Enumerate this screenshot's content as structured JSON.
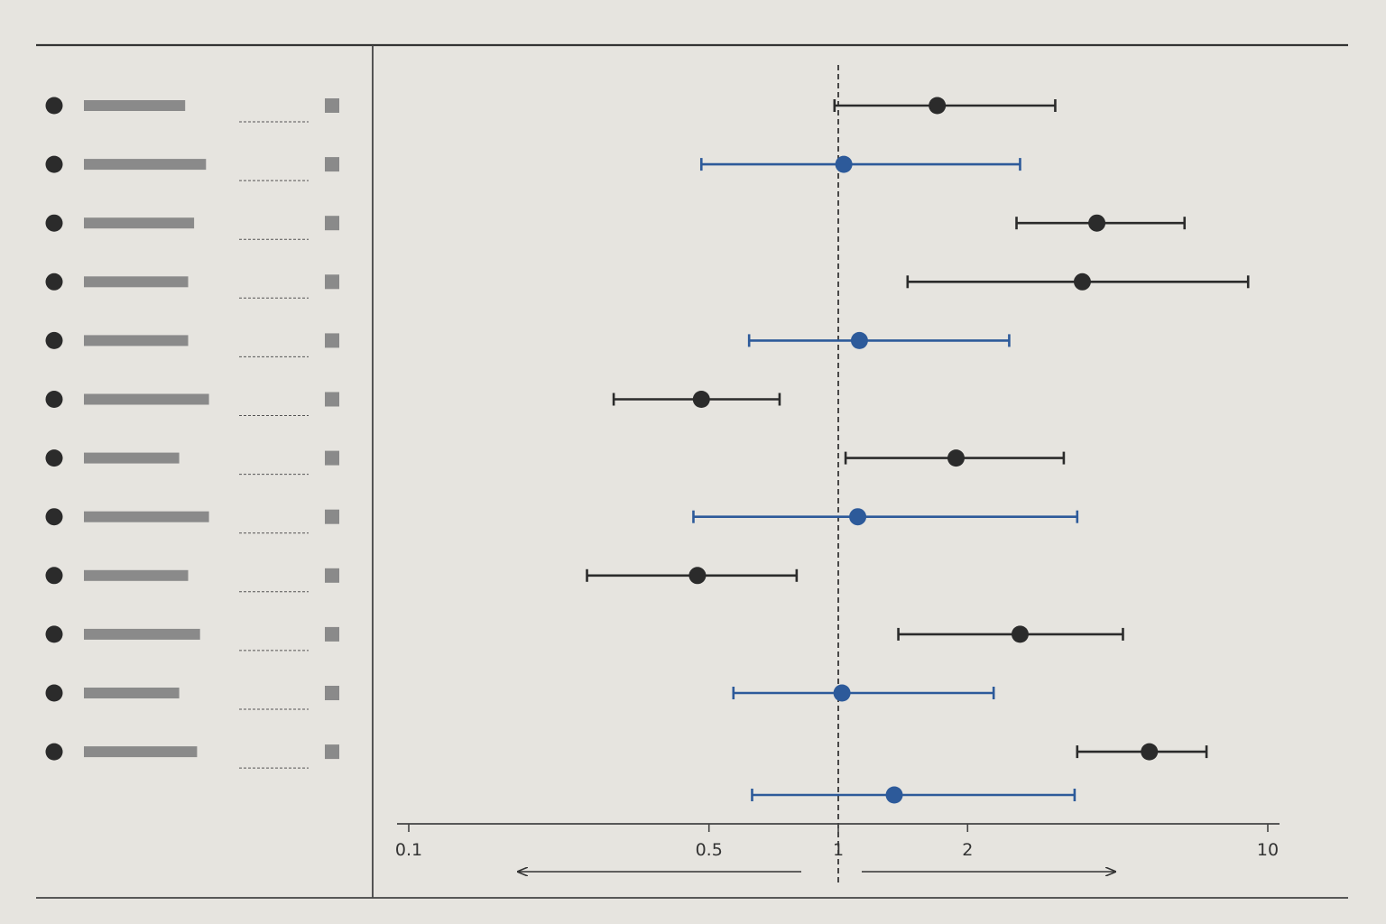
{
  "chart_data": {
    "type": "forest",
    "title": "",
    "xlabel": "",
    "ylabel": "",
    "xscale": "log",
    "xlim": [
      0.1,
      10
    ],
    "reference_line": 1,
    "x_ticks": [
      {
        "value": 0.1,
        "label": "0.1"
      },
      {
        "value": 0.5,
        "label": "0.5"
      },
      {
        "value": 1,
        "label": "1"
      },
      {
        "value": 2,
        "label": "2"
      },
      {
        "value": 10,
        "label": "10"
      }
    ],
    "direction_arrows": [
      "left",
      "right"
    ],
    "colors": {
      "black": "#2b2b2b",
      "blue": "#2d5a9a",
      "placeholder": "#8a8a8a"
    },
    "rows": [
      {
        "estimate": 1.7,
        "lower": 0.98,
        "upper": 3.2,
        "color": "black",
        "has_label": true
      },
      {
        "estimate": 1.03,
        "lower": 0.48,
        "upper": 2.65,
        "color": "blue",
        "has_label": true
      },
      {
        "estimate": 4.0,
        "lower": 2.6,
        "upper": 6.4,
        "color": "black",
        "has_label": true
      },
      {
        "estimate": 3.7,
        "lower": 1.45,
        "upper": 9.0,
        "color": "black",
        "has_label": true
      },
      {
        "estimate": 1.12,
        "lower": 0.62,
        "upper": 2.5,
        "color": "blue",
        "has_label": true
      },
      {
        "estimate": 0.48,
        "lower": 0.3,
        "upper": 0.73,
        "color": "black",
        "has_label": true
      },
      {
        "estimate": 1.88,
        "lower": 1.04,
        "upper": 3.35,
        "color": "black",
        "has_label": true
      },
      {
        "estimate": 1.11,
        "lower": 0.46,
        "upper": 3.6,
        "color": "blue",
        "has_label": true
      },
      {
        "estimate": 0.47,
        "lower": 0.26,
        "upper": 0.8,
        "color": "black",
        "has_label": true
      },
      {
        "estimate": 2.65,
        "lower": 1.38,
        "upper": 4.6,
        "color": "black",
        "has_label": true
      },
      {
        "estimate": 1.02,
        "lower": 0.57,
        "upper": 2.3,
        "color": "blue",
        "has_label": true
      },
      {
        "estimate": 5.3,
        "lower": 3.6,
        "upper": 7.2,
        "color": "black",
        "has_label": true
      },
      {
        "estimate": 1.35,
        "lower": 0.63,
        "upper": 3.55,
        "color": "blue",
        "has_label": false
      }
    ],
    "label_bar_lengths": [
      0.34,
      0.41,
      0.37,
      0.35,
      0.35,
      0.42,
      0.32,
      0.42,
      0.35,
      0.39,
      0.32,
      0.38
    ]
  }
}
